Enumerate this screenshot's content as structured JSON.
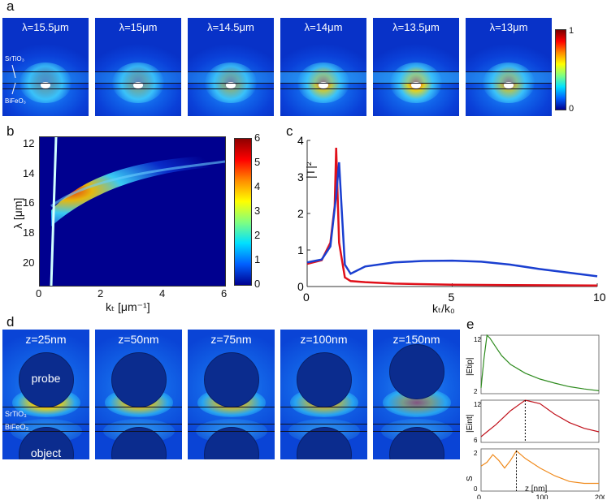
{
  "panels": {
    "a": {
      "label": "a",
      "tiles": [
        "λ=15.5μm",
        "λ=15μm",
        "λ=14.5μm",
        "λ=14μm",
        "λ=13.5μm",
        "λ=13μm"
      ],
      "layer_labels": [
        "SrTiO₃",
        "BiFeO₃"
      ],
      "colorbar_ticks": [
        "1",
        "0"
      ]
    },
    "b": {
      "label": "b",
      "xlabel": "kₜ [μm⁻¹]",
      "ylabel": "λ [μm]",
      "x_ticks": [
        "0",
        "2",
        "4",
        "6"
      ],
      "y_ticks": [
        "12",
        "14",
        "16",
        "18",
        "20"
      ],
      "colorbar_ticks": [
        "6",
        "5",
        "4",
        "3",
        "2",
        "1",
        "0"
      ]
    },
    "c": {
      "label": "c",
      "xlabel": "kₜ/k₀",
      "ylabel": "|T|²",
      "x_ticks": [
        "0",
        "5",
        "10"
      ],
      "y_ticks": [
        "0",
        "1",
        "2",
        "3",
        "4"
      ]
    },
    "d": {
      "label": "d",
      "tiles": [
        "z=25nm",
        "z=50nm",
        "z=75nm",
        "z=100nm",
        "z=150nm"
      ],
      "layer_labels": [
        "SrTiO₃",
        "BiFeO₃"
      ],
      "probe_label": "probe",
      "object_label": "object"
    },
    "e": {
      "label": "e",
      "xlabel": "z [nm]",
      "x_ticks": [
        "0",
        "100",
        "200"
      ],
      "subplots": [
        {
          "ylabel": "|Etip|",
          "y_ticks": [
            "12",
            "2"
          ],
          "color": "#2e8b1e"
        },
        {
          "ylabel": "|Eint|",
          "y_ticks": [
            "12",
            "6"
          ],
          "color": "#c0101a"
        },
        {
          "ylabel": "S",
          "y_ticks": [
            "2",
            "0"
          ],
          "color": "#f08a1c"
        }
      ]
    }
  },
  "chart_data": [
    {
      "type": "line",
      "panel": "c",
      "xlabel": "kt/k0",
      "ylabel": "|T|2",
      "xlim": [
        0,
        10
      ],
      "ylim": [
        0,
        4
      ],
      "series": [
        {
          "color": "#e0101a",
          "x": [
            0,
            0.5,
            0.8,
            0.95,
            1.0,
            1.1,
            1.3,
            1.5,
            2,
            3,
            5,
            7,
            10
          ],
          "y": [
            0.62,
            0.72,
            1.2,
            2.2,
            3.8,
            1.2,
            0.25,
            0.15,
            0.12,
            0.08,
            0.05,
            0.04,
            0.03
          ]
        },
        {
          "color": "#1a3fd0",
          "x": [
            0,
            0.5,
            0.8,
            1.0,
            1.1,
            1.2,
            1.3,
            1.5,
            2,
            3,
            4,
            5,
            6,
            7,
            8,
            9,
            10
          ],
          "y": [
            0.66,
            0.74,
            1.1,
            2.5,
            3.4,
            2.0,
            0.6,
            0.35,
            0.55,
            0.66,
            0.7,
            0.71,
            0.68,
            0.6,
            0.48,
            0.38,
            0.28
          ]
        }
      ]
    },
    {
      "type": "line",
      "panel": "e",
      "xlabel": "z [nm]",
      "xlim": [
        0,
        200
      ],
      "series": [
        {
          "name": "|Etip|",
          "color": "#2e8b1e",
          "x": [
            0,
            5,
            10,
            15,
            25,
            35,
            50,
            75,
            100,
            125,
            150,
            175,
            200
          ],
          "y": [
            3,
            8,
            12,
            11.5,
            10,
            8.5,
            7,
            5.5,
            4.5,
            3.8,
            3.2,
            2.8,
            2.5
          ]
        },
        {
          "name": "|Eint|",
          "color": "#c0101a",
          "x": [
            0,
            10,
            25,
            50,
            75,
            100,
            125,
            150,
            175,
            200
          ],
          "y": [
            6.8,
            7.5,
            8.5,
            10.5,
            12,
            11.5,
            10,
            8.8,
            8.0,
            7.5
          ]
        },
        {
          "name": "S",
          "color": "#f08a1c",
          "x": [
            0,
            10,
            20,
            30,
            40,
            50,
            60,
            75,
            100,
            125,
            150,
            175,
            200
          ],
          "y": [
            1.3,
            1.5,
            1.9,
            1.6,
            1.2,
            1.6,
            2.1,
            1.7,
            1.2,
            0.8,
            0.5,
            0.4,
            0.4
          ]
        }
      ]
    }
  ]
}
